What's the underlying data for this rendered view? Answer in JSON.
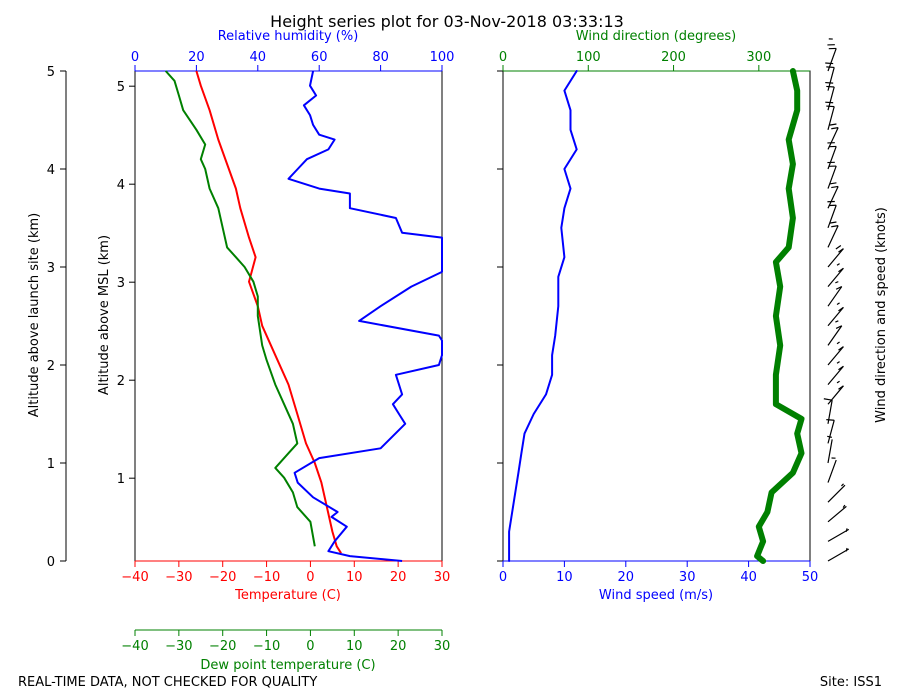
{
  "title": "Height series plot for 03-Nov-2018 03:33:13",
  "footer_left": "REAL-TIME DATA, NOT CHECKED FOR QUALITY",
  "footer_right": "Site: ISS1",
  "colors": {
    "temperature": "#ff0000",
    "dewpoint": "#008000",
    "rh": "#0000ff",
    "wind_speed": "#0000ff",
    "wind_dir": "#008000",
    "barbs": "#000000"
  },
  "chart_data": [
    {
      "type": "line",
      "title": "",
      "ylabel_outer": "Altitude above launch site (km)",
      "ylabel_inner": "Altitude above MSL (km)",
      "xlabel_temperature": "Temperature (C)",
      "xlabel_dewpoint": "Dew point temperature (C)",
      "xlabel_rh": "Relative humidity (%)",
      "outer_yticks": [
        0,
        1,
        2,
        3,
        4,
        5
      ],
      "outer_ylim": [
        0,
        5
      ],
      "msl_yticks": [
        0,
        1,
        2,
        3,
        4,
        5
      ],
      "msl_ylim": [
        0.155,
        5.155
      ],
      "temp_xticks": [
        -40,
        -30,
        -20,
        -10,
        0,
        10,
        20,
        30
      ],
      "temp_xlim": [
        -40,
        30
      ],
      "rh_xticks": [
        0,
        20,
        40,
        60,
        80,
        100
      ],
      "rh_xlim": [
        0,
        100
      ],
      "series": [
        {
          "name": "Temperature (C)",
          "axis": "temp",
          "points": [
            [
              7,
              0.08
            ],
            [
              6,
              0.15
            ],
            [
              5,
              0.3
            ],
            [
              4,
              0.5
            ],
            [
              2.5,
              0.8
            ],
            [
              1,
              1.0
            ],
            [
              -1,
              1.2
            ],
            [
              -3,
              1.5
            ],
            [
              -5,
              1.8
            ],
            [
              -8,
              2.1
            ],
            [
              -11,
              2.4
            ],
            [
              -12,
              2.6
            ],
            [
              -14,
              2.85
            ],
            [
              -12.5,
              3.1
            ],
            [
              -14,
              3.3
            ],
            [
              -16,
              3.6
            ],
            [
              -17,
              3.8
            ],
            [
              -19,
              4.05
            ],
            [
              -21,
              4.3
            ],
            [
              -23,
              4.6
            ],
            [
              -25,
              4.85
            ],
            [
              -26,
              5.0
            ]
          ]
        },
        {
          "name": "Dew point temperature (C)",
          "axis": "temp",
          "points": [
            [
              1,
              0.15
            ],
            [
              0,
              0.4
            ],
            [
              -3,
              0.55
            ],
            [
              -4,
              0.7
            ],
            [
              -6,
              0.85
            ],
            [
              -8,
              0.95
            ],
            [
              -5,
              1.1
            ],
            [
              -3,
              1.2
            ],
            [
              -4,
              1.4
            ],
            [
              -6,
              1.6
            ],
            [
              -8,
              1.8
            ],
            [
              -10,
              2.05
            ],
            [
              -11,
              2.2
            ],
            [
              -12,
              2.5
            ],
            [
              -12,
              2.7
            ],
            [
              -13,
              2.85
            ],
            [
              -15,
              3.0
            ],
            [
              -17,
              3.1
            ],
            [
              -19,
              3.2
            ],
            [
              -20,
              3.4
            ],
            [
              -21,
              3.6
            ],
            [
              -23,
              3.8
            ],
            [
              -24,
              4.0
            ],
            [
              -25,
              4.1
            ],
            [
              -24,
              4.25
            ],
            [
              -26,
              4.4
            ],
            [
              -29,
              4.6
            ],
            [
              -30,
              4.75
            ],
            [
              -31,
              4.9
            ],
            [
              -33,
              5.0
            ]
          ]
        },
        {
          "name": "Relative humidity (%)",
          "axis": "rh",
          "points": [
            [
              87,
              0.0
            ],
            [
              70,
              0.05
            ],
            [
              63,
              0.1
            ],
            [
              65,
              0.2
            ],
            [
              69,
              0.35
            ],
            [
              64,
              0.45
            ],
            [
              66,
              0.5
            ],
            [
              58,
              0.65
            ],
            [
              53,
              0.8
            ],
            [
              52,
              0.9
            ],
            [
              60,
              1.05
            ],
            [
              80,
              1.15
            ],
            [
              88,
              1.4
            ],
            [
              86,
              1.5
            ],
            [
              84,
              1.6
            ],
            [
              87,
              1.7
            ],
            [
              85,
              1.9
            ],
            [
              99,
              2.0
            ],
            [
              100,
              2.1
            ],
            [
              100,
              2.25
            ],
            [
              99,
              2.3
            ],
            [
              73,
              2.45
            ],
            [
              80,
              2.6
            ],
            [
              90,
              2.8
            ],
            [
              100,
              2.95
            ],
            [
              100,
              3.1
            ],
            [
              100,
              3.3
            ],
            [
              87,
              3.35
            ],
            [
              85,
              3.5
            ],
            [
              70,
              3.6
            ],
            [
              70,
              3.75
            ],
            [
              60,
              3.8
            ],
            [
              50,
              3.9
            ],
            [
              53,
              4.0
            ],
            [
              56,
              4.1
            ],
            [
              63,
              4.2
            ],
            [
              65,
              4.3
            ],
            [
              60,
              4.35
            ],
            [
              58,
              4.45
            ],
            [
              57,
              4.55
            ],
            [
              55,
              4.65
            ],
            [
              59,
              4.75
            ],
            [
              57,
              4.85
            ],
            [
              58,
              5.0
            ]
          ]
        }
      ]
    },
    {
      "type": "line",
      "title": "",
      "xlabel_speed": "Wind speed (m/s)",
      "xlabel_direction": "Wind direction (degrees)",
      "ylabel_right": "Wind direction and speed (knots)",
      "speed_xticks": [
        0,
        10,
        20,
        30,
        40,
        50
      ],
      "speed_xlim": [
        0,
        50
      ],
      "dir_xticks": [
        0,
        100,
        200,
        300
      ],
      "dir_xlim": [
        0,
        360
      ],
      "series": [
        {
          "name": "Wind speed (m/s)",
          "axis": "speed",
          "points": [
            [
              1,
              0.0
            ],
            [
              1,
              0.3
            ],
            [
              1.5,
              0.5
            ],
            [
              2,
              0.7
            ],
            [
              2.5,
              0.9
            ],
            [
              3,
              1.1
            ],
            [
              3.5,
              1.3
            ],
            [
              5,
              1.5
            ],
            [
              7,
              1.7
            ],
            [
              8,
              1.9
            ],
            [
              8,
              2.1
            ],
            [
              8.5,
              2.3
            ],
            [
              9,
              2.6
            ],
            [
              9,
              2.9
            ],
            [
              10,
              3.1
            ],
            [
              9.5,
              3.4
            ],
            [
              10,
              3.6
            ],
            [
              11,
              3.8
            ],
            [
              10,
              4.0
            ],
            [
              12,
              4.2
            ],
            [
              11,
              4.4
            ],
            [
              11,
              4.6
            ],
            [
              10,
              4.8
            ],
            [
              12,
              5.0
            ]
          ]
        },
        {
          "name": "Wind direction (degrees)",
          "axis": "dir",
          "points": [
            [
              305,
              0.0
            ],
            [
              298,
              0.05
            ],
            [
              305,
              0.2
            ],
            [
              300,
              0.35
            ],
            [
              310,
              0.5
            ],
            [
              315,
              0.7
            ],
            [
              340,
              0.9
            ],
            [
              350,
              1.1
            ],
            [
              345,
              1.3
            ],
            [
              350,
              1.45
            ],
            [
              320,
              1.6
            ],
            [
              320,
              1.9
            ],
            [
              325,
              2.2
            ],
            [
              320,
              2.5
            ],
            [
              325,
              2.8
            ],
            [
              320,
              3.05
            ],
            [
              335,
              3.2
            ],
            [
              340,
              3.5
            ],
            [
              335,
              3.8
            ],
            [
              340,
              4.05
            ],
            [
              335,
              4.3
            ],
            [
              345,
              4.6
            ],
            [
              345,
              4.8
            ],
            [
              340,
              5.0
            ]
          ]
        }
      ],
      "barbs": [
        {
          "alt": 0.0,
          "speed_kt": 5,
          "dir": 300
        },
        {
          "alt": 0.2,
          "speed_kt": 5,
          "dir": 300
        },
        {
          "alt": 0.4,
          "speed_kt": 5,
          "dir": 310
        },
        {
          "alt": 0.6,
          "speed_kt": 5,
          "dir": 315
        },
        {
          "alt": 0.8,
          "speed_kt": 5,
          "dir": 340
        },
        {
          "alt": 1.0,
          "speed_kt": 5,
          "dir": 350
        },
        {
          "alt": 1.2,
          "speed_kt": 10,
          "dir": 345
        },
        {
          "alt": 1.4,
          "speed_kt": 10,
          "dir": 350
        },
        {
          "alt": 1.6,
          "speed_kt": 15,
          "dir": 320
        },
        {
          "alt": 1.8,
          "speed_kt": 15,
          "dir": 320
        },
        {
          "alt": 2.0,
          "speed_kt": 15,
          "dir": 320
        },
        {
          "alt": 2.2,
          "speed_kt": 15,
          "dir": 325
        },
        {
          "alt": 2.4,
          "speed_kt": 15,
          "dir": 320
        },
        {
          "alt": 2.6,
          "speed_kt": 15,
          "dir": 325
        },
        {
          "alt": 2.8,
          "speed_kt": 15,
          "dir": 320
        },
        {
          "alt": 3.0,
          "speed_kt": 20,
          "dir": 320
        },
        {
          "alt": 3.2,
          "speed_kt": 20,
          "dir": 335
        },
        {
          "alt": 3.4,
          "speed_kt": 20,
          "dir": 340
        },
        {
          "alt": 3.6,
          "speed_kt": 20,
          "dir": 335
        },
        {
          "alt": 3.8,
          "speed_kt": 20,
          "dir": 340
        },
        {
          "alt": 4.0,
          "speed_kt": 20,
          "dir": 340
        },
        {
          "alt": 4.2,
          "speed_kt": 20,
          "dir": 335
        },
        {
          "alt": 4.4,
          "speed_kt": 20,
          "dir": 345
        },
        {
          "alt": 4.6,
          "speed_kt": 20,
          "dir": 345
        },
        {
          "alt": 4.8,
          "speed_kt": 20,
          "dir": 345
        },
        {
          "alt": 5.0,
          "speed_kt": 25,
          "dir": 340
        }
      ]
    }
  ]
}
